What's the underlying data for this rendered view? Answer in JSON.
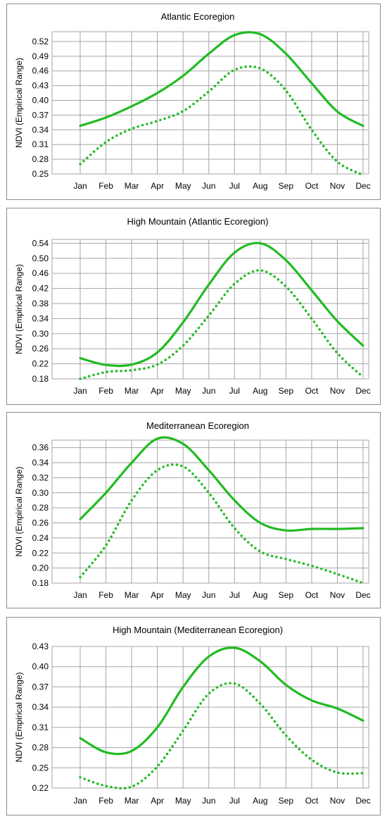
{
  "chart_data": [
    {
      "type": "line",
      "title": "Atlantic Ecoregion",
      "ylabel": "NDVI (Empirical Range)",
      "xlabel": "",
      "categories": [
        "Jan",
        "Feb",
        "Mar",
        "Apr",
        "May",
        "Jun",
        "Jul",
        "Aug",
        "Sep",
        "Oct",
        "Nov",
        "Dec"
      ],
      "ylim": [
        0.25,
        0.54
      ],
      "yticks": [
        0.25,
        0.28,
        0.31,
        0.34,
        0.37,
        0.4,
        0.43,
        0.46,
        0.49,
        0.52
      ],
      "grid": true,
      "series": [
        {
          "style": "solid",
          "color": "#22bb22",
          "values": [
            0.348,
            0.365,
            0.388,
            0.415,
            0.45,
            0.495,
            0.533,
            0.535,
            0.495,
            0.435,
            0.377,
            0.348
          ]
        },
        {
          "style": "dotted",
          "color": "#22bb22",
          "values": [
            0.27,
            0.315,
            0.342,
            0.358,
            0.378,
            0.418,
            0.462,
            0.465,
            0.42,
            0.34,
            0.275,
            0.248
          ]
        }
      ]
    },
    {
      "type": "line",
      "title": "High Mountain (Atlantic Ecoregion)",
      "ylabel": "NDVI (Empirical Range)",
      "xlabel": "",
      "categories": [
        "Jan",
        "Feb",
        "Mar",
        "Apr",
        "May",
        "Jun",
        "Jul",
        "Aug",
        "Sep",
        "Oct",
        "Nov",
        "Dec"
      ],
      "ylim": [
        0.18,
        0.55
      ],
      "yticks": [
        0.18,
        0.22,
        0.26,
        0.3,
        0.34,
        0.38,
        0.42,
        0.46,
        0.5,
        0.54
      ],
      "grid": true,
      "series": [
        {
          "style": "solid",
          "color": "#22bb22",
          "values": [
            0.235,
            0.217,
            0.218,
            0.25,
            0.33,
            0.43,
            0.515,
            0.54,
            0.495,
            0.415,
            0.333,
            0.268
          ]
        },
        {
          "style": "dotted",
          "color": "#22bb22",
          "values": [
            0.18,
            0.198,
            0.203,
            0.218,
            0.268,
            0.348,
            0.432,
            0.468,
            0.425,
            0.34,
            0.248,
            0.185
          ]
        }
      ]
    },
    {
      "type": "line",
      "title": "Mediterranean Ecoregion",
      "ylabel": "NDVI (Empirical Range)",
      "xlabel": "",
      "categories": [
        "Jan",
        "Feb",
        "Mar",
        "Apr",
        "May",
        "Jun",
        "Jul",
        "Aug",
        "Sep",
        "Oct",
        "Nov",
        "Dec"
      ],
      "ylim": [
        0.18,
        0.37
      ],
      "yticks": [
        0.18,
        0.2,
        0.22,
        0.24,
        0.26,
        0.28,
        0.3,
        0.32,
        0.34,
        0.36
      ],
      "grid": true,
      "series": [
        {
          "style": "solid",
          "color": "#22bb22",
          "values": [
            0.265,
            0.3,
            0.34,
            0.372,
            0.365,
            0.33,
            0.29,
            0.26,
            0.25,
            0.252,
            0.252,
            0.253
          ]
        },
        {
          "style": "dotted",
          "color": "#22bb22",
          "values": [
            0.188,
            0.23,
            0.29,
            0.33,
            0.335,
            0.3,
            0.253,
            0.222,
            0.212,
            0.203,
            0.192,
            0.18
          ]
        }
      ]
    },
    {
      "type": "line",
      "title": "High Mountain (Mediterranean Ecoregion)",
      "ylabel": "NDVI (Empirical Range)",
      "xlabel": "",
      "categories": [
        "Jan",
        "Feb",
        "Mar",
        "Apr",
        "May",
        "Jun",
        "Jul",
        "Aug",
        "Sep",
        "Oct",
        "Nov",
        "Dec"
      ],
      "ylim": [
        0.22,
        0.43
      ],
      "yticks": [
        0.22,
        0.25,
        0.28,
        0.31,
        0.34,
        0.37,
        0.4,
        0.43
      ],
      "grid": true,
      "series": [
        {
          "style": "solid",
          "color": "#22bb22",
          "values": [
            0.294,
            0.273,
            0.275,
            0.31,
            0.37,
            0.415,
            0.428,
            0.408,
            0.373,
            0.35,
            0.338,
            0.32
          ]
        },
        {
          "style": "dotted",
          "color": "#22bb22",
          "values": [
            0.236,
            0.223,
            0.222,
            0.252,
            0.305,
            0.36,
            0.375,
            0.345,
            0.298,
            0.262,
            0.243,
            0.242
          ]
        }
      ]
    }
  ]
}
